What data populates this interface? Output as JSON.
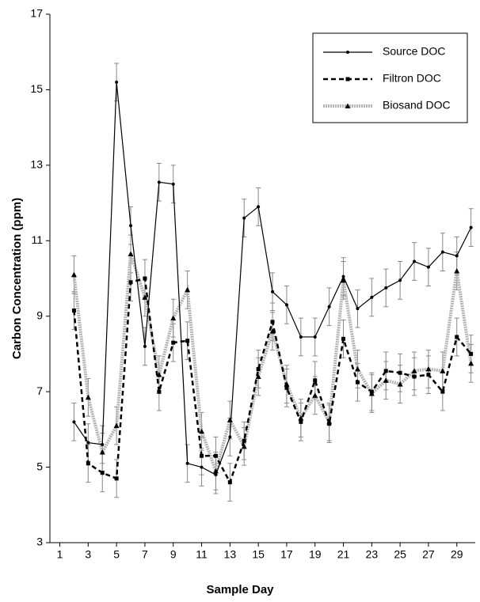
{
  "chart_data": {
    "type": "line",
    "x_label": "Sample Day",
    "y_label": "Carbon Concentration (ppm)",
    "x": [
      2,
      3,
      4,
      5,
      6,
      7,
      8,
      9,
      10,
      11,
      12,
      13,
      14,
      15,
      16,
      17,
      18,
      19,
      20,
      21,
      22,
      23,
      24,
      25,
      26,
      27,
      28,
      29,
      30
    ],
    "xlim": [
      0.3,
      30.3
    ],
    "xticks": [
      1,
      3,
      5,
      7,
      9,
      11,
      13,
      15,
      17,
      19,
      21,
      23,
      25,
      27,
      29
    ],
    "ylim": [
      3,
      17
    ],
    "yticks": [
      3,
      5,
      7,
      9,
      11,
      13,
      15,
      17
    ],
    "legend": "upper right",
    "series": [
      {
        "name": "Source DOC",
        "color": "#000000",
        "style": "solid",
        "marker": "circle",
        "error": 0.5,
        "values": [
          6.2,
          5.65,
          5.6,
          15.2,
          11.4,
          8.2,
          12.55,
          12.5,
          5.1,
          5.0,
          4.8,
          5.8,
          11.6,
          11.9,
          9.65,
          9.3,
          8.45,
          8.45,
          9.25,
          10.05,
          9.2,
          9.5,
          9.75,
          9.95,
          10.45,
          10.3,
          10.7,
          10.6,
          11.35
        ]
      },
      {
        "name": "Filtron DOC",
        "color": "#000000",
        "style": "dashed",
        "marker": "square",
        "error": 0.5,
        "values": [
          9.15,
          5.1,
          4.85,
          4.7,
          9.9,
          10.0,
          7.0,
          8.3,
          8.35,
          5.3,
          5.3,
          4.6,
          5.7,
          7.6,
          8.85,
          7.1,
          6.2,
          7.3,
          6.15,
          8.4,
          7.25,
          7.0,
          7.55,
          7.5,
          7.4,
          7.45,
          7.0,
          8.45,
          8.0
        ]
      },
      {
        "name": "Biosand DOC",
        "color": "#b4b4b4",
        "style": "dotted",
        "marker": "triangle",
        "error": 0.5,
        "values": [
          10.1,
          6.85,
          5.4,
          6.1,
          10.65,
          9.5,
          7.45,
          8.95,
          9.7,
          5.95,
          4.9,
          6.25,
          5.55,
          7.4,
          8.6,
          7.2,
          6.3,
          6.9,
          6.2,
          9.95,
          7.6,
          6.95,
          7.3,
          7.2,
          7.55,
          7.6,
          7.55,
          10.2,
          7.75
        ]
      }
    ]
  }
}
